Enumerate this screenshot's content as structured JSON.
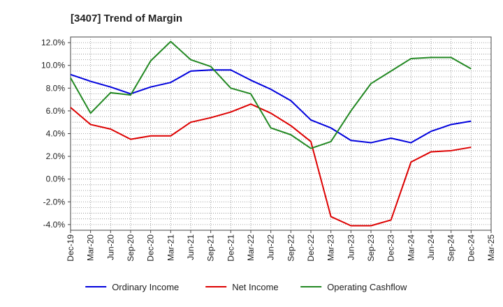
{
  "chart_data": {
    "type": "line",
    "title": "[3407]  Trend of Margin",
    "xlabel": "",
    "ylabel": "",
    "categories": [
      "Dec-19",
      "Mar-20",
      "Jun-20",
      "Sep-20",
      "Dec-20",
      "Mar-21",
      "Jun-21",
      "Sep-21",
      "Dec-21",
      "Mar-22",
      "Jun-22",
      "Sep-22",
      "Dec-22",
      "Mar-23",
      "Jun-23",
      "Sep-23",
      "Dec-23",
      "Mar-24",
      "Jun-24",
      "Sep-24",
      "Dec-24",
      "Mar-25"
    ],
    "ylim": [
      -4.5,
      12.5
    ],
    "yticks": [
      12.0,
      10.0,
      8.0,
      6.0,
      4.0,
      2.0,
      0.0,
      -2.0,
      -4.0
    ],
    "ytick_labels": [
      "12.0%",
      "10.0%",
      "8.0%",
      "6.0%",
      "4.0%",
      "2.0%",
      "0.0%",
      "-2.0%",
      "-4.0%"
    ],
    "grid": true,
    "legend_position": "bottom",
    "series": [
      {
        "name": "Ordinary Income",
        "color": "#0000dd",
        "values": [
          9.2,
          8.6,
          8.1,
          7.5,
          8.1,
          8.5,
          9.5,
          9.6,
          9.6,
          8.7,
          7.9,
          6.9,
          5.2,
          4.5,
          3.4,
          3.2,
          3.6,
          3.2,
          4.2,
          4.8,
          5.1,
          null
        ]
      },
      {
        "name": "Net Income",
        "color": "#dd0000",
        "values": [
          6.3,
          4.8,
          4.4,
          3.5,
          3.8,
          3.8,
          5.0,
          5.4,
          5.9,
          6.6,
          5.8,
          4.7,
          3.3,
          -3.3,
          -4.1,
          -4.1,
          -3.6,
          1.5,
          2.4,
          2.5,
          2.8,
          null
        ]
      },
      {
        "name": "Operating Cashflow",
        "color": "#228822",
        "values": [
          8.9,
          5.8,
          7.6,
          7.4,
          10.4,
          12.1,
          10.5,
          9.9,
          8.0,
          7.5,
          4.5,
          3.9,
          2.7,
          3.3,
          6.0,
          8.4,
          9.5,
          10.6,
          10.7,
          10.7,
          9.7,
          null
        ]
      }
    ]
  }
}
